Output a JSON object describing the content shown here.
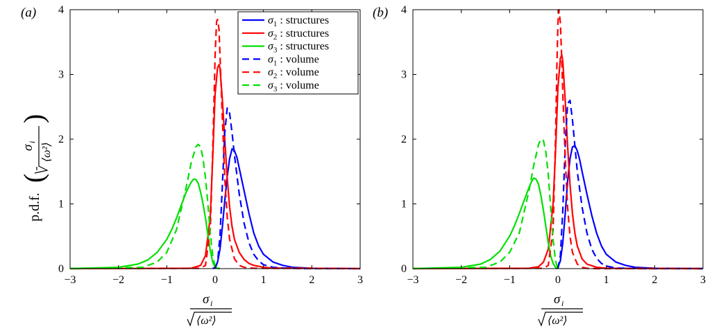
{
  "panel_labels": [
    "(a)",
    "(b)"
  ],
  "ylabel": "p.d.f.",
  "ylabel_frac": {
    "numerator": "σ",
    "numerator_sub": "i",
    "denominator": "⟨ω²⟩"
  },
  "xlabel_frac": {
    "numerator": "σ",
    "numerator_sub": "i",
    "denominator": "⟨ω²⟩"
  },
  "legend": [
    {
      "sym": "σ",
      "sub": "1",
      "text": " : structures"
    },
    {
      "sym": "σ",
      "sub": "2",
      "text": " : structures"
    },
    {
      "sym": "σ",
      "sub": "3",
      "text": " : structures"
    },
    {
      "sym": "σ",
      "sub": "1",
      "text": " : volume"
    },
    {
      "sym": "σ",
      "sub": "2",
      "text": " : volume"
    },
    {
      "sym": "σ",
      "sub": "3",
      "text": " : volume"
    }
  ],
  "colors": {
    "sigma1": "#0000ff",
    "sigma2": "#ff0000",
    "sigma3": "#00e000"
  },
  "chart_data": [
    {
      "type": "line",
      "xlim": [
        -3,
        3
      ],
      "ylim": [
        0,
        4
      ],
      "xticks": [
        -3,
        -2,
        -1,
        0,
        1,
        2,
        3
      ],
      "yticks": [
        0,
        1,
        2,
        3,
        4
      ],
      "legend_position": "top-right",
      "series": [
        {
          "name": "σ1 : structures",
          "color": "#0000ff",
          "dash": false,
          "x": [
            -0.05,
            0.0,
            0.05,
            0.1,
            0.15,
            0.2,
            0.25,
            0.3,
            0.35,
            0.4,
            0.45,
            0.5,
            0.6,
            0.7,
            0.8,
            0.9,
            1.0,
            1.2,
            1.4,
            1.6,
            2.0,
            3.0
          ],
          "y": [
            0,
            0.02,
            0.1,
            0.3,
            0.65,
            1.05,
            1.42,
            1.7,
            1.85,
            1.82,
            1.72,
            1.55,
            1.2,
            0.85,
            0.55,
            0.35,
            0.22,
            0.1,
            0.05,
            0.02,
            0.005,
            0
          ]
        },
        {
          "name": "σ2 : structures",
          "color": "#ff0000",
          "dash": false,
          "x": [
            -3,
            -0.5,
            -0.3,
            -0.2,
            -0.1,
            -0.05,
            0.0,
            0.05,
            0.08,
            0.1,
            0.15,
            0.2,
            0.25,
            0.3,
            0.35,
            0.4,
            0.5,
            0.6,
            0.7,
            0.8,
            1.0,
            1.2,
            3.0
          ],
          "y": [
            0,
            0.005,
            0.05,
            0.2,
            0.8,
            1.7,
            2.7,
            3.1,
            3.15,
            3.1,
            2.6,
            2.0,
            1.4,
            0.95,
            0.65,
            0.45,
            0.25,
            0.14,
            0.08,
            0.05,
            0.02,
            0.01,
            0
          ]
        },
        {
          "name": "σ3 : structures",
          "color": "#00e000",
          "dash": false,
          "x": [
            -3,
            -2.0,
            -1.6,
            -1.4,
            -1.2,
            -1.0,
            -0.9,
            -0.8,
            -0.7,
            -0.6,
            -0.5,
            -0.45,
            -0.4,
            -0.35,
            -0.3,
            -0.25,
            -0.2,
            -0.15,
            -0.1,
            -0.05,
            0.0,
            0.05,
            0.1
          ],
          "y": [
            0,
            0.02,
            0.07,
            0.13,
            0.25,
            0.45,
            0.6,
            0.78,
            0.98,
            1.18,
            1.33,
            1.38,
            1.38,
            1.32,
            1.18,
            1.0,
            0.78,
            0.52,
            0.28,
            0.1,
            0.02,
            0.005,
            0
          ]
        },
        {
          "name": "σ1 : volume",
          "color": "#0000ff",
          "dash": true,
          "x": [
            0.0,
            0.05,
            0.1,
            0.15,
            0.2,
            0.25,
            0.3,
            0.35,
            0.4,
            0.5,
            0.6,
            0.7,
            0.8,
            0.9,
            1.0,
            1.2,
            1.4,
            1.8,
            3.0
          ],
          "y": [
            0,
            0.1,
            0.5,
            1.3,
            2.1,
            2.48,
            2.4,
            2.1,
            1.75,
            1.15,
            0.7,
            0.4,
            0.22,
            0.12,
            0.06,
            0.02,
            0.01,
            0,
            0
          ]
        },
        {
          "name": "σ2 : volume",
          "color": "#ff0000",
          "dash": true,
          "x": [
            -3,
            -0.3,
            -0.2,
            -0.1,
            -0.05,
            0.0,
            0.03,
            0.05,
            0.08,
            0.1,
            0.15,
            0.2,
            0.25,
            0.3,
            0.4,
            0.5,
            0.6,
            0.8,
            3.0
          ],
          "y": [
            0,
            0.005,
            0.05,
            0.6,
            1.8,
            3.3,
            3.82,
            3.85,
            3.7,
            3.3,
            2.3,
            1.4,
            0.8,
            0.45,
            0.15,
            0.05,
            0.02,
            0.005,
            0
          ]
        },
        {
          "name": "σ3 : volume",
          "color": "#00e000",
          "dash": true,
          "x": [
            -3,
            -1.5,
            -1.2,
            -1.0,
            -0.8,
            -0.6,
            -0.5,
            -0.4,
            -0.35,
            -0.3,
            -0.25,
            -0.2,
            -0.15,
            -0.1,
            -0.05,
            0.0,
            0.05
          ],
          "y": [
            0,
            0.02,
            0.1,
            0.25,
            0.6,
            1.25,
            1.62,
            1.88,
            1.92,
            1.88,
            1.7,
            1.4,
            1.0,
            0.55,
            0.2,
            0.04,
            0
          ]
        }
      ]
    },
    {
      "type": "line",
      "xlim": [
        -3,
        3
      ],
      "ylim": [
        0,
        4
      ],
      "xticks": [
        -3,
        -2,
        -1,
        0,
        1,
        2,
        3
      ],
      "yticks": [
        0,
        1,
        2,
        3,
        4
      ],
      "series": [
        {
          "name": "σ1 : structures",
          "color": "#0000ff",
          "dash": false,
          "x": [
            -0.05,
            0.0,
            0.05,
            0.1,
            0.15,
            0.2,
            0.25,
            0.3,
            0.35,
            0.4,
            0.45,
            0.5,
            0.6,
            0.7,
            0.8,
            0.9,
            1.0,
            1.2,
            1.4,
            1.6,
            2.0,
            3.0
          ],
          "y": [
            0,
            0.02,
            0.12,
            0.4,
            0.85,
            1.35,
            1.7,
            1.88,
            1.9,
            1.82,
            1.68,
            1.5,
            1.15,
            0.82,
            0.55,
            0.35,
            0.22,
            0.1,
            0.05,
            0.02,
            0.005,
            0
          ]
        },
        {
          "name": "σ2 : structures",
          "color": "#ff0000",
          "dash": false,
          "x": [
            -3,
            -0.6,
            -0.4,
            -0.3,
            -0.2,
            -0.1,
            -0.05,
            0.0,
            0.05,
            0.08,
            0.1,
            0.15,
            0.2,
            0.25,
            0.3,
            0.35,
            0.4,
            0.5,
            0.6,
            0.8,
            1.0,
            3.0
          ],
          "y": [
            0,
            0.005,
            0.03,
            0.1,
            0.3,
            1.0,
            1.8,
            2.8,
            3.25,
            3.3,
            3.2,
            2.6,
            1.9,
            1.3,
            0.85,
            0.55,
            0.35,
            0.15,
            0.07,
            0.02,
            0.005,
            0
          ]
        },
        {
          "name": "σ3 : structures",
          "color": "#00e000",
          "dash": false,
          "x": [
            -3,
            -2.0,
            -1.6,
            -1.4,
            -1.2,
            -1.0,
            -0.9,
            -0.8,
            -0.7,
            -0.6,
            -0.55,
            -0.5,
            -0.45,
            -0.4,
            -0.35,
            -0.3,
            -0.25,
            -0.2,
            -0.15,
            -0.1,
            -0.05,
            0.0
          ],
          "y": [
            0,
            0.02,
            0.07,
            0.14,
            0.27,
            0.5,
            0.66,
            0.85,
            1.05,
            1.25,
            1.34,
            1.4,
            1.38,
            1.3,
            1.12,
            0.9,
            0.65,
            0.4,
            0.2,
            0.08,
            0.02,
            0
          ]
        },
        {
          "name": "σ1 : volume",
          "color": "#0000ff",
          "dash": true,
          "x": [
            0.0,
            0.05,
            0.1,
            0.15,
            0.2,
            0.25,
            0.3,
            0.35,
            0.4,
            0.5,
            0.6,
            0.7,
            0.8,
            0.9,
            1.0,
            1.2,
            1.4,
            1.8,
            3.0
          ],
          "y": [
            0,
            0.2,
            0.9,
            1.9,
            2.55,
            2.6,
            2.3,
            1.9,
            1.5,
            0.95,
            0.55,
            0.3,
            0.16,
            0.08,
            0.04,
            0.01,
            0.005,
            0,
            0
          ]
        },
        {
          "name": "σ2 : volume",
          "color": "#ff0000",
          "dash": true,
          "x": [
            -3,
            -0.3,
            -0.2,
            -0.1,
            -0.05,
            -0.02,
            0.0,
            0.02,
            0.05,
            0.08,
            0.1,
            0.15,
            0.2,
            0.25,
            0.3,
            0.4,
            0.5,
            0.6,
            0.8,
            3.0
          ],
          "y": [
            0,
            0.005,
            0.05,
            0.6,
            2.0,
            3.2,
            3.8,
            4.0,
            3.8,
            3.2,
            2.7,
            1.7,
            0.95,
            0.5,
            0.25,
            0.07,
            0.02,
            0.005,
            0,
            0
          ]
        },
        {
          "name": "σ3 : volume",
          "color": "#00e000",
          "dash": true,
          "x": [
            -3,
            -1.5,
            -1.2,
            -1.0,
            -0.8,
            -0.6,
            -0.5,
            -0.4,
            -0.35,
            -0.3,
            -0.25,
            -0.2,
            -0.15,
            -0.1,
            -0.05,
            0.0
          ],
          "y": [
            0,
            0.02,
            0.1,
            0.25,
            0.55,
            1.2,
            1.6,
            1.92,
            2.0,
            1.98,
            1.8,
            1.45,
            0.95,
            0.45,
            0.12,
            0
          ]
        }
      ]
    }
  ]
}
